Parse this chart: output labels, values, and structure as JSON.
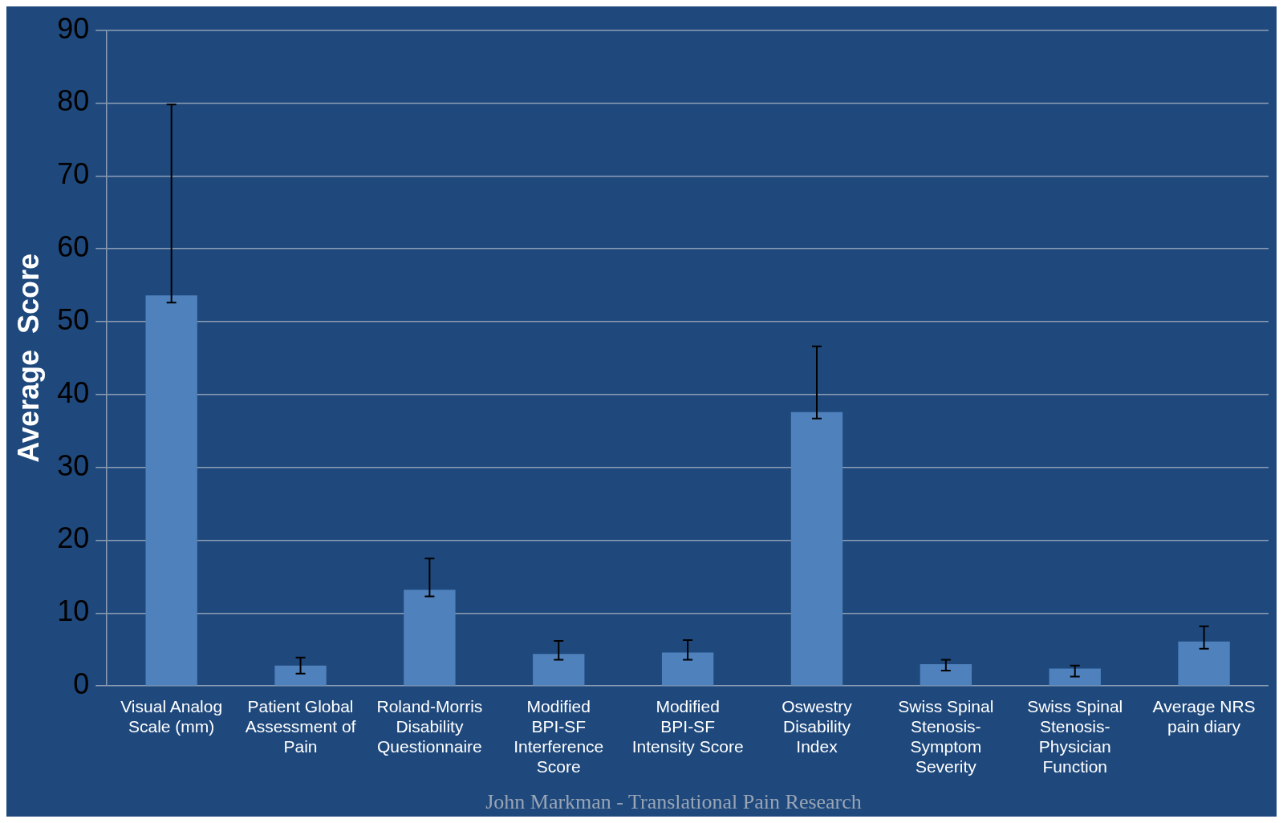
{
  "chart_data": {
    "type": "bar",
    "ylabel": "Average  Score",
    "categories": [
      "Visual Analog Scale (mm)",
      "Patient Global Assessment of Pain",
      "Roland-Morris Disability Questionnaire",
      "Modified BPI-SF Interference Score",
      "Modified BPI-SF Intensity Score",
      "Oswestry Disability Index",
      "Swiss Spinal Stenosis-Symptom Severity",
      "Swiss Spinal Stenosis-Physician Function",
      "Average NRS pain diary"
    ],
    "values": [
      53.6,
      2.8,
      13.2,
      4.4,
      4.6,
      37.6,
      3.0,
      2.4,
      6.1
    ],
    "errors": [
      [
        52.6,
        79.8
      ],
      [
        1.7,
        3.9
      ],
      [
        12.3,
        17.5
      ],
      [
        3.6,
        6.2
      ],
      [
        3.6,
        6.3
      ],
      [
        36.7,
        46.6
      ],
      [
        2.1,
        3.6
      ],
      [
        1.3,
        2.8
      ],
      [
        5.1,
        8.2
      ]
    ],
    "color": "#4f81bd",
    "ylim": [
      0,
      90
    ],
    "yticks": [
      0,
      10,
      20,
      30,
      40,
      50,
      60,
      70,
      80,
      90
    ],
    "grid": "y",
    "annotations": [
      "John Markman - Translational Pain Research"
    ]
  }
}
